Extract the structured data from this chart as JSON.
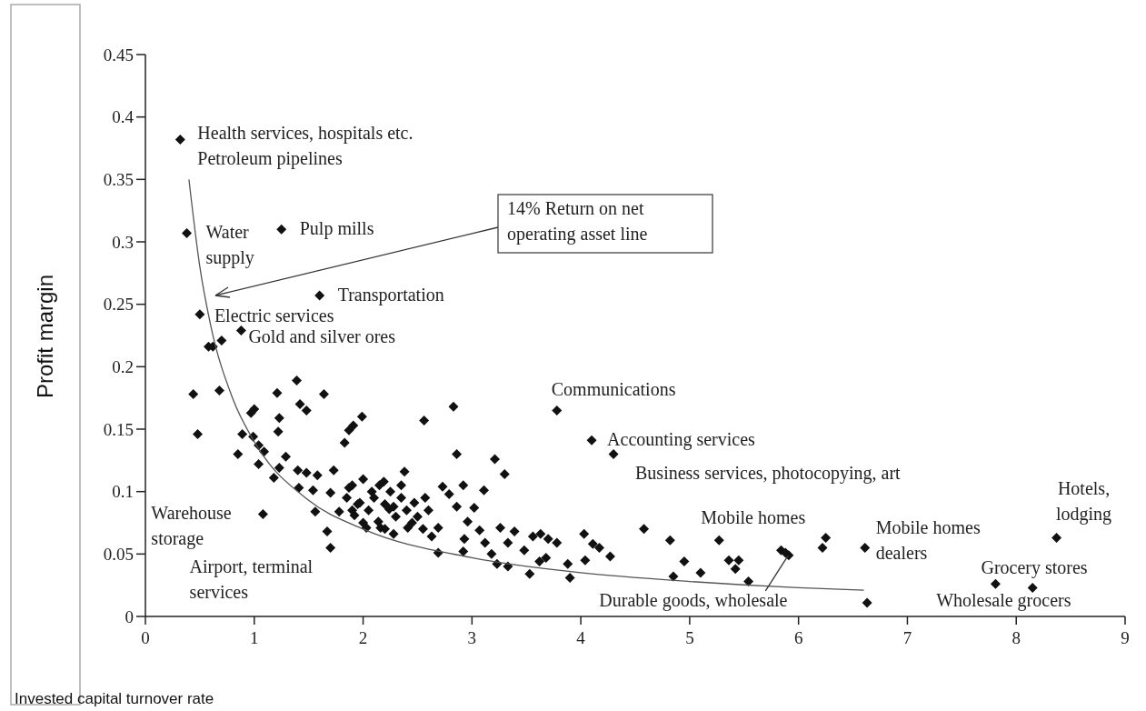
{
  "chart_data": {
    "type": "scatter",
    "xlabel": "Invested capital turnover rate",
    "ylabel": "Profit margin",
    "xlim": [
      0,
      9
    ],
    "ylim": [
      0,
      0.45
    ],
    "xticks": [
      0,
      1,
      2,
      3,
      4,
      5,
      6,
      7,
      8,
      9
    ],
    "yticks": [
      0,
      0.05,
      0.1,
      0.15,
      0.2,
      0.25,
      0.3,
      0.35,
      0.4,
      0.45
    ],
    "grid": false,
    "marker": "diamond",
    "series": [
      {
        "color": "#111111",
        "x": [
          0.32,
          0.38,
          1.25,
          1.6,
          0.5,
          0.88,
          0.7,
          0.58,
          0.62,
          3.78,
          4.1,
          4.3,
          1.08,
          1.67,
          1.7,
          0.44,
          0.68,
          1.21,
          1.39,
          1.64,
          1.0,
          0.97,
          1.42,
          1.48,
          1.23,
          1.91,
          1.99,
          1.87,
          1.83,
          0.48,
          0.89,
          1.22,
          0.99,
          1.04,
          1.09,
          0.85,
          1.29,
          1.04,
          1.23,
          1.18,
          1.4,
          1.48,
          1.58,
          1.73,
          1.41,
          1.54,
          1.7,
          1.56,
          1.87,
          1.97,
          2.08,
          1.78,
          1.92,
          2.03,
          2.14,
          2.24,
          2.19,
          2.83,
          2.56,
          2.86,
          3.21,
          3.3,
          2.38,
          2.92,
          3.11,
          2.73,
          2.79,
          2.86,
          3.02,
          2.57,
          2.47,
          2.28,
          2.69,
          2.63,
          2.96,
          3.07,
          2.93,
          2.92,
          2.69,
          3.12,
          3.18,
          3.23,
          3.33,
          3.26,
          3.39,
          3.33,
          3.48,
          3.56,
          3.63,
          3.7,
          3.78,
          3.53,
          3.62,
          3.68,
          3.88,
          3.9,
          4.03,
          4.11,
          4.17,
          4.04,
          4.27,
          2.28,
          2.16,
          2.41,
          4.58,
          4.82,
          5.27,
          4.95,
          4.85,
          5.1,
          5.36,
          5.45,
          5.42,
          5.54,
          5.84,
          5.91,
          5.88,
          6.25,
          6.22,
          6.61,
          6.63,
          8.37,
          7.81,
          8.15,
          1.85,
          1.9,
          1.95,
          2.0,
          2.05,
          2.1,
          2.15,
          2.2,
          2.25,
          2.3,
          2.35,
          2.4,
          2.45,
          2.5,
          2.55,
          2.6,
          2.0,
          1.9,
          2.2,
          2.35
        ],
        "values": [
          0.382,
          0.307,
          0.31,
          0.257,
          0.242,
          0.229,
          0.221,
          0.216,
          0.216,
          0.165,
          0.141,
          0.13,
          0.082,
          0.068,
          0.055,
          0.178,
          0.181,
          0.179,
          0.189,
          0.178,
          0.166,
          0.163,
          0.17,
          0.165,
          0.159,
          0.153,
          0.16,
          0.149,
          0.139,
          0.146,
          0.146,
          0.148,
          0.144,
          0.137,
          0.132,
          0.13,
          0.128,
          0.122,
          0.119,
          0.111,
          0.117,
          0.115,
          0.113,
          0.117,
          0.103,
          0.101,
          0.099,
          0.084,
          0.103,
          0.091,
          0.1,
          0.084,
          0.081,
          0.071,
          0.076,
          0.086,
          0.108,
          0.168,
          0.157,
          0.13,
          0.126,
          0.114,
          0.116,
          0.105,
          0.101,
          0.104,
          0.098,
          0.088,
          0.087,
          0.095,
          0.091,
          0.088,
          0.071,
          0.064,
          0.076,
          0.069,
          0.062,
          0.052,
          0.051,
          0.059,
          0.05,
          0.042,
          0.04,
          0.071,
          0.068,
          0.059,
          0.053,
          0.064,
          0.066,
          0.062,
          0.059,
          0.034,
          0.044,
          0.047,
          0.042,
          0.031,
          0.066,
          0.058,
          0.055,
          0.045,
          0.048,
          0.066,
          0.071,
          0.071,
          0.07,
          0.061,
          0.061,
          0.044,
          0.032,
          0.035,
          0.045,
          0.045,
          0.038,
          0.028,
          0.053,
          0.049,
          0.051,
          0.063,
          0.055,
          0.055,
          0.011,
          0.063,
          0.026,
          0.023,
          0.095,
          0.105,
          0.09,
          0.11,
          0.085,
          0.095,
          0.105,
          0.09,
          0.1,
          0.08,
          0.095,
          0.085,
          0.075,
          0.08,
          0.07,
          0.085,
          0.075,
          0.085,
          0.07,
          0.105
        ]
      },
      {
        "type": "line",
        "color": "#555555",
        "marker": "none",
        "line_style": "solid",
        "x": [
          0.4,
          0.5,
          0.6,
          0.8,
          1,
          1.5,
          2,
          3,
          4,
          5,
          6,
          6.6
        ],
        "values": [
          0.35,
          0.28,
          0.233,
          0.175,
          0.14,
          0.093,
          0.07,
          0.047,
          0.035,
          0.028,
          0.023,
          0.021
        ]
      }
    ],
    "annotations": [
      {
        "text": "Health services, hospitals etc.",
        "x": 0.32,
        "y": 0.382
      },
      {
        "text": "Petroleum pipelines",
        "x": 0.32,
        "y": 0.382
      },
      {
        "text": "Water supply",
        "x": 0.38,
        "y": 0.307
      },
      {
        "text": "Pulp mills",
        "x": 1.25,
        "y": 0.31
      },
      {
        "text": "Transportation",
        "x": 1.6,
        "y": 0.257
      },
      {
        "text": "Electric services",
        "x": 0.5,
        "y": 0.242
      },
      {
        "text": "Gold and silver ores",
        "x": 0.88,
        "y": 0.229
      },
      {
        "text": "Communications",
        "x": 3.78,
        "y": 0.165
      },
      {
        "text": "Accounting services",
        "x": 4.1,
        "y": 0.141
      },
      {
        "text": "Business services, photocopying, art",
        "x": 4.3,
        "y": 0.13
      },
      {
        "text": "Warehouse storage",
        "x": 1.08,
        "y": 0.082
      },
      {
        "text": "Airport, terminal services",
        "x": 1.7,
        "y": 0.055
      },
      {
        "text": "Mobile homes",
        "x": 5.27,
        "y": 0.061
      },
      {
        "text": "Mobile homes dealers",
        "x": 6.61,
        "y": 0.055
      },
      {
        "text": "Hotels, lodging",
        "x": 8.37,
        "y": 0.063
      },
      {
        "text": "Grocery stores",
        "x": 7.81,
        "y": 0.026
      },
      {
        "text": "Wholesale grocers",
        "x": 8.15,
        "y": 0.023
      },
      {
        "text": "Durable goods, wholesale",
        "x": 5.88,
        "y": 0.051
      },
      "14% Return on net operating asset line"
    ]
  }
}
